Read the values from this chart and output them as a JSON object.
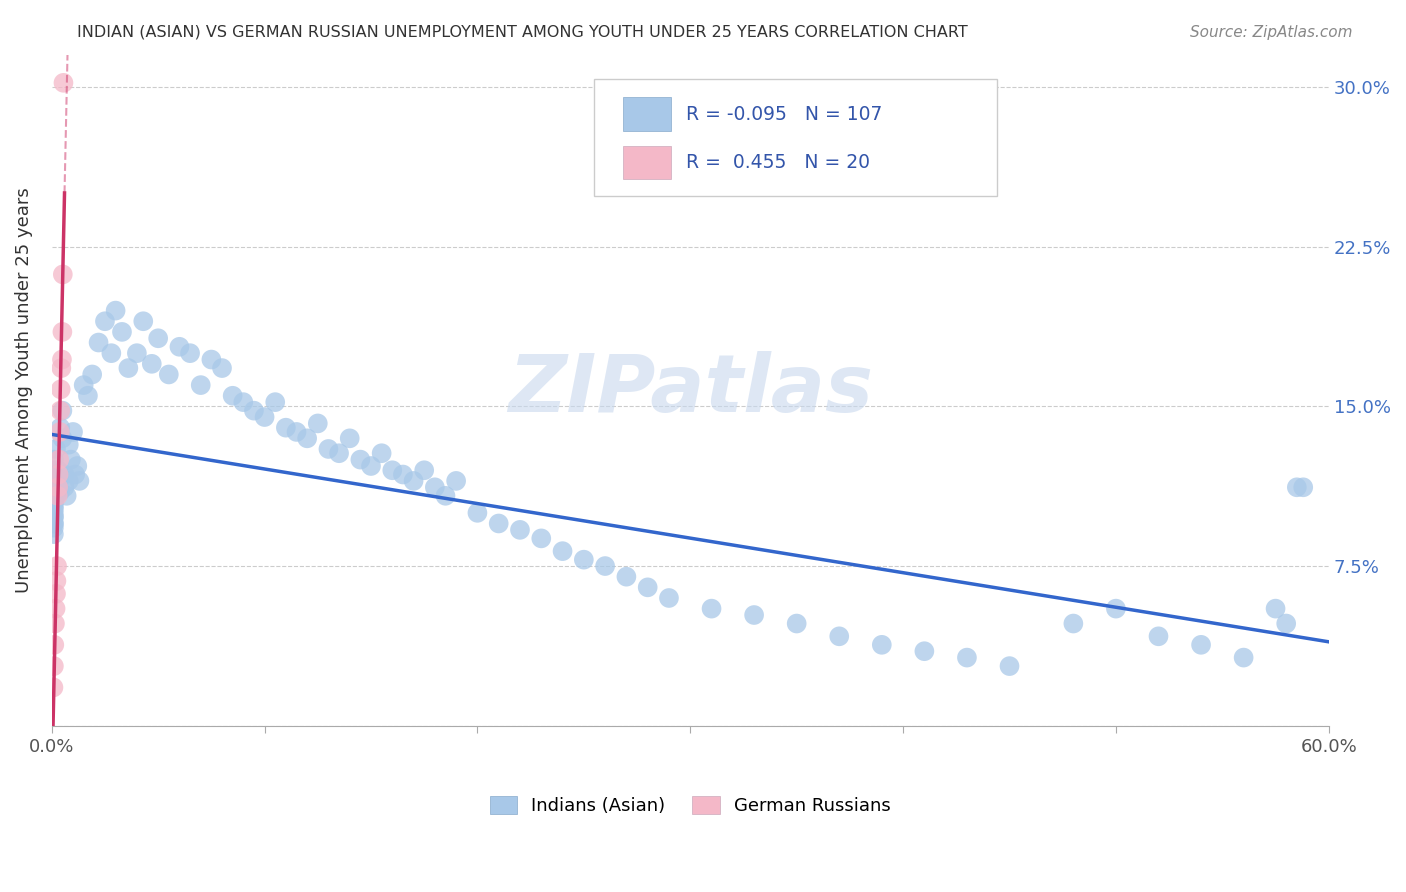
{
  "title": "INDIAN (ASIAN) VS GERMAN RUSSIAN UNEMPLOYMENT AMONG YOUTH UNDER 25 YEARS CORRELATION CHART",
  "source": "Source: ZipAtlas.com",
  "ylabel": "Unemployment Among Youth under 25 years",
  "xlim": [
    0.0,
    0.6
  ],
  "ylim": [
    0.0,
    0.315
  ],
  "xtick_positions": [
    0.0,
    0.1,
    0.2,
    0.3,
    0.4,
    0.5,
    0.6
  ],
  "xtick_labels": [
    "0.0%",
    "",
    "",
    "",
    "",
    "",
    "60.0%"
  ],
  "ytick_positions": [
    0.0,
    0.075,
    0.15,
    0.225,
    0.3
  ],
  "ytick_labels_right": [
    "",
    "7.5%",
    "15.0%",
    "22.5%",
    "30.0%"
  ],
  "blue_R": "-0.095",
  "blue_N": "107",
  "pink_R": "0.455",
  "pink_N": "20",
  "blue_color": "#a8c8e8",
  "pink_color": "#f4b8c8",
  "blue_line_color": "#3366cc",
  "pink_line_color": "#cc3366",
  "watermark": "ZIPatlas",
  "legend_label_blue": "Indians (Asian)",
  "legend_label_pink": "German Russians",
  "blue_x": [
    0.001,
    0.001,
    0.001,
    0.001,
    0.001,
    0.001,
    0.001,
    0.001,
    0.001,
    0.001,
    0.001,
    0.001,
    0.001,
    0.001,
    0.001,
    0.001,
    0.001,
    0.001,
    0.001,
    0.001,
    0.002,
    0.002,
    0.002,
    0.003,
    0.003,
    0.004,
    0.004,
    0.005,
    0.005,
    0.006,
    0.006,
    0.007,
    0.008,
    0.008,
    0.009,
    0.01,
    0.011,
    0.012,
    0.013,
    0.015,
    0.017,
    0.019,
    0.022,
    0.025,
    0.028,
    0.03,
    0.033,
    0.036,
    0.04,
    0.043,
    0.047,
    0.05,
    0.055,
    0.06,
    0.065,
    0.07,
    0.075,
    0.08,
    0.085,
    0.09,
    0.095,
    0.1,
    0.105,
    0.11,
    0.115,
    0.12,
    0.125,
    0.13,
    0.135,
    0.14,
    0.145,
    0.15,
    0.155,
    0.16,
    0.165,
    0.17,
    0.175,
    0.18,
    0.185,
    0.19,
    0.2,
    0.21,
    0.22,
    0.23,
    0.24,
    0.25,
    0.26,
    0.27,
    0.28,
    0.29,
    0.31,
    0.33,
    0.35,
    0.37,
    0.39,
    0.41,
    0.43,
    0.45,
    0.48,
    0.5,
    0.52,
    0.54,
    0.56,
    0.575,
    0.58,
    0.585,
    0.588
  ],
  "blue_y": [
    0.12,
    0.115,
    0.11,
    0.108,
    0.105,
    0.103,
    0.1,
    0.098,
    0.095,
    0.093,
    0.09,
    0.112,
    0.118,
    0.108,
    0.102,
    0.098,
    0.095,
    0.115,
    0.105,
    0.125,
    0.108,
    0.112,
    0.13,
    0.115,
    0.12,
    0.11,
    0.14,
    0.135,
    0.148,
    0.118,
    0.112,
    0.108,
    0.132,
    0.115,
    0.125,
    0.138,
    0.118,
    0.122,
    0.115,
    0.16,
    0.155,
    0.165,
    0.18,
    0.19,
    0.175,
    0.195,
    0.185,
    0.168,
    0.175,
    0.19,
    0.17,
    0.182,
    0.165,
    0.178,
    0.175,
    0.16,
    0.172,
    0.168,
    0.155,
    0.152,
    0.148,
    0.145,
    0.152,
    0.14,
    0.138,
    0.135,
    0.142,
    0.13,
    0.128,
    0.135,
    0.125,
    0.122,
    0.128,
    0.12,
    0.118,
    0.115,
    0.12,
    0.112,
    0.108,
    0.115,
    0.1,
    0.095,
    0.092,
    0.088,
    0.082,
    0.078,
    0.075,
    0.07,
    0.065,
    0.06,
    0.055,
    0.052,
    0.048,
    0.042,
    0.038,
    0.035,
    0.032,
    0.028,
    0.048,
    0.055,
    0.042,
    0.038,
    0.032,
    0.055,
    0.048,
    0.112,
    0.112
  ],
  "pink_x": [
    0.0008,
    0.001,
    0.0012,
    0.0015,
    0.0018,
    0.002,
    0.0022,
    0.0025,
    0.0028,
    0.003,
    0.0032,
    0.0035,
    0.0038,
    0.004,
    0.0042,
    0.0045,
    0.0048,
    0.005,
    0.0052,
    0.0055
  ],
  "pink_y": [
    0.018,
    0.028,
    0.038,
    0.048,
    0.055,
    0.062,
    0.068,
    0.075,
    0.108,
    0.112,
    0.118,
    0.125,
    0.138,
    0.148,
    0.158,
    0.168,
    0.172,
    0.185,
    0.212,
    0.302
  ]
}
